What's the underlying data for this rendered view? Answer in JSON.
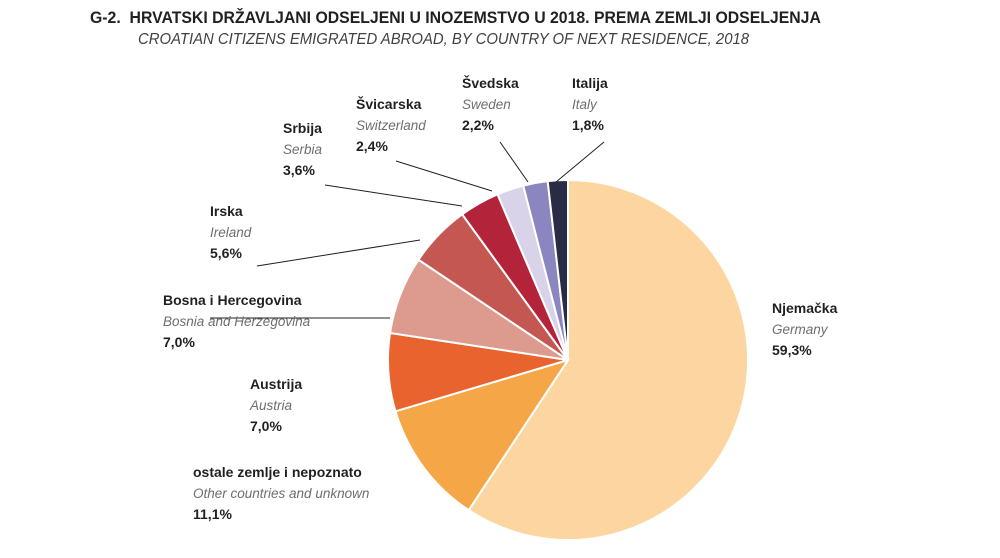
{
  "title": {
    "number": "G-2.",
    "hr": "HRVATSKI DRŽAVLJANI ODSELJENI U INOZEMSTVO U 2018. PREMA ZEMLJI ODSELJENJA",
    "en": "CROATIAN CITIZENS EMIGRATED ABROAD, BY COUNTRY OF NEXT RESIDENCE, 2018"
  },
  "chart_data": {
    "type": "pie",
    "title": "HRVATSKI DRŽAVLJANI ODSELJENI U INOZEMSTVO U 2018. PREMA ZEMLJI ODSELJENJA",
    "subtitle": "CROATIAN CITIZENS EMIGRATED ABROAD, BY COUNTRY OF NEXT RESIDENCE, 2018",
    "slices": [
      {
        "label_hr": "Njemačka",
        "label_en": "Germany",
        "value": 59.3,
        "value_label": "59,3%",
        "color": "#fdd5a0"
      },
      {
        "label_hr": "ostale zemlje i nepoznato",
        "label_en": "Other countries and unknown",
        "value": 11.1,
        "value_label": "11,1%",
        "color": "#f5a748"
      },
      {
        "label_hr": "Austrija",
        "label_en": "Austria",
        "value": 7.0,
        "value_label": "7,0%",
        "color": "#e8632d"
      },
      {
        "label_hr": "Bosna i Hercegovina",
        "label_en": "Bosnia and Herzegovina",
        "value": 7.0,
        "value_label": "7,0%",
        "color": "#dd9b90"
      },
      {
        "label_hr": "Irska",
        "label_en": "Ireland",
        "value": 5.6,
        "value_label": "5,6%",
        "color": "#c45751"
      },
      {
        "label_hr": "Srbija",
        "label_en": "Serbia",
        "value": 3.6,
        "value_label": "3,6%",
        "color": "#b3233a"
      },
      {
        "label_hr": "Švicarska",
        "label_en": "Switzerland",
        "value": 2.4,
        "value_label": "2,4%",
        "color": "#d8d3e8"
      },
      {
        "label_hr": "Švedska",
        "label_en": "Sweden",
        "value": 2.2,
        "value_label": "2,2%",
        "color": "#8c86c0"
      },
      {
        "label_hr": "Italija",
        "label_en": "Italy",
        "value": 1.8,
        "value_label": "1,8%",
        "color": "#2a2b45"
      }
    ],
    "legend": "none"
  }
}
